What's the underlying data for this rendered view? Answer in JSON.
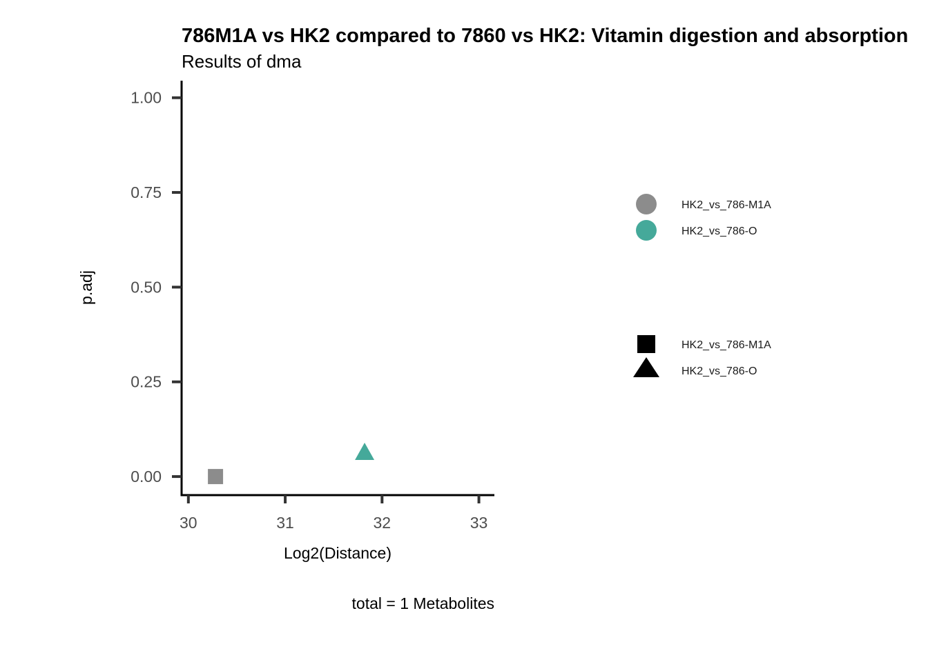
{
  "chart_data": {
    "type": "scatter",
    "title": "786M1A vs HK2 compared to 7860 vs HK2: Vitamin digestion and absorption",
    "subtitle": "Results of dma",
    "xlabel": "Log2(Distance)",
    "ylabel": "p.adj",
    "caption": "total = 1 Metabolites",
    "xlim": [
      29.93,
      33.16
    ],
    "ylim": [
      -0.049,
      1.045
    ],
    "xticks": [
      30,
      31,
      32,
      33
    ],
    "xtick_labels": [
      "30",
      "31",
      "32",
      "33"
    ],
    "yticks": [
      0,
      0.25,
      0.5,
      0.75,
      1.0
    ],
    "ytick_labels": [
      "0.00",
      "0.25",
      "0.50",
      "0.75",
      "1.00"
    ],
    "grid": false,
    "points": [
      {
        "x": 30.28,
        "y": 0.0,
        "group": "HK2_vs_786-M1A",
        "shape": "square",
        "color": "#8c8c8c"
      },
      {
        "x": 31.82,
        "y": 0.062,
        "group": "HK2_vs_786-O",
        "shape": "triangle",
        "color": "#45a99a"
      }
    ],
    "legend_color": {
      "placement": "right",
      "items": [
        {
          "label": "HK2_vs_786-M1A",
          "color": "#8c8c8c"
        },
        {
          "label": "HK2_vs_786-O",
          "color": "#45a99a"
        }
      ]
    },
    "legend_shape": {
      "placement": "right",
      "items": [
        {
          "label": "HK2_vs_786-M1A",
          "shape": "square"
        },
        {
          "label": "HK2_vs_786-O",
          "shape": "triangle"
        }
      ]
    }
  }
}
